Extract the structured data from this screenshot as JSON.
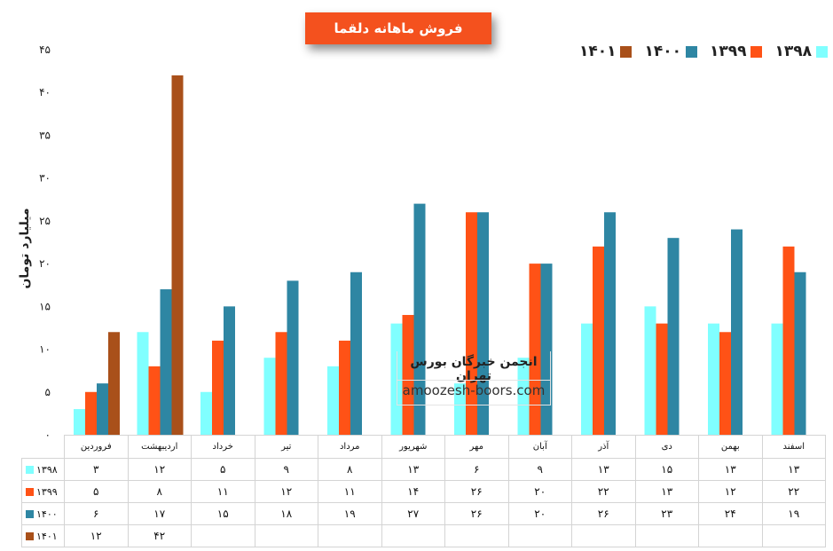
{
  "title": "فروش ماهانه دلقما",
  "y_axis_label": "میلیارد تومان",
  "y_ticks": [
    "۰",
    "۵",
    "۱۰",
    "۱۵",
    "۲۰",
    "۲۵",
    "۳۰",
    "۳۵",
    "۴۰",
    "۴۵"
  ],
  "watermark": {
    "title": "انجمن خبرگان بورس تهران",
    "url": "amoozesh-boors.com"
  },
  "table": {
    "rows": [
      [
        "۳",
        "۱۲",
        "۵",
        "۹",
        "۸",
        "۱۳",
        "۶",
        "۹",
        "۱۳",
        "۱۵",
        "۱۳",
        "۱۳"
      ],
      [
        "۵",
        "۸",
        "۱۱",
        "۱۲",
        "۱۱",
        "۱۴",
        "۲۶",
        "۲۰",
        "۲۲",
        "۱۳",
        "۱۲",
        "۲۲"
      ],
      [
        "۶",
        "۱۷",
        "۱۵",
        "۱۸",
        "۱۹",
        "۲۷",
        "۲۶",
        "۲۰",
        "۲۶",
        "۲۳",
        "۲۴",
        "۱۹"
      ],
      [
        "۱۲",
        "۴۲",
        "",
        "",
        "",
        "",
        "",
        "",
        "",
        "",
        "",
        ""
      ]
    ]
  },
  "chart_data": {
    "type": "bar",
    "title": "فروش ماهانه دلقما",
    "xlabel": "",
    "ylabel": "میلیارد تومان",
    "ylim": [
      0,
      45
    ],
    "grid": false,
    "legend_position": "top-right",
    "categories": [
      "فروردین",
      "اردیبهشت",
      "خرداد",
      "تیر",
      "مرداد",
      "شهریور",
      "مهر",
      "آبان",
      "آذر",
      "دی",
      "بهمن",
      "اسفند"
    ],
    "series": [
      {
        "name": "۱۳۹۸",
        "color": "#80ffff",
        "values": [
          3,
          12,
          5,
          9,
          8,
          13,
          6,
          9,
          13,
          15,
          13,
          13
        ]
      },
      {
        "name": "۱۳۹۹",
        "color": "#ff5216",
        "values": [
          5,
          8,
          11,
          12,
          11,
          14,
          26,
          20,
          22,
          13,
          12,
          22
        ]
      },
      {
        "name": "۱۴۰۰",
        "color": "#2e86a3",
        "values": [
          6,
          17,
          15,
          18,
          19,
          27,
          26,
          20,
          26,
          23,
          24,
          19
        ]
      },
      {
        "name": "۱۴۰۱",
        "color": "#a9501a",
        "values": [
          12,
          42,
          null,
          null,
          null,
          null,
          null,
          null,
          null,
          null,
          null,
          null
        ]
      }
    ]
  }
}
